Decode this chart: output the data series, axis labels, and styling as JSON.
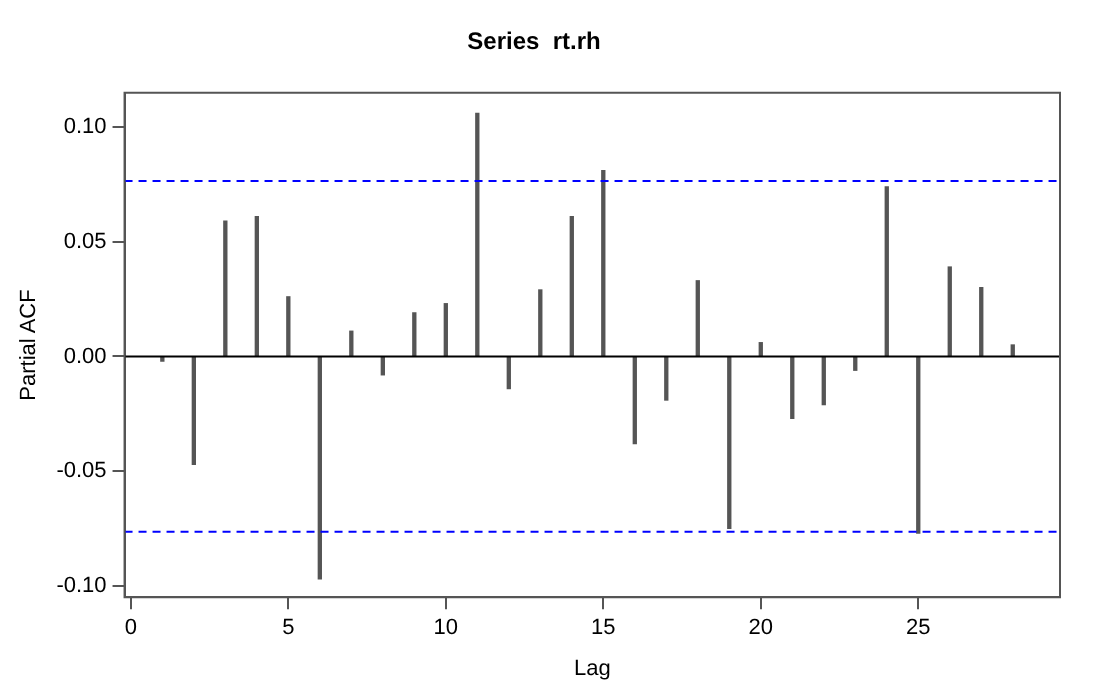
{
  "chart_data": {
    "type": "bar",
    "title": "Series  rt.rh",
    "xlabel": "Lag",
    "ylabel": "Partial ACF",
    "x": [
      1,
      2,
      3,
      4,
      5,
      6,
      7,
      8,
      9,
      10,
      11,
      12,
      13,
      14,
      15,
      16,
      17,
      18,
      19,
      20,
      21,
      22,
      23,
      24,
      25,
      26,
      27,
      28
    ],
    "series": [
      {
        "color": "#555555",
        "values": [
          -0.002,
          -0.047,
          0.059,
          0.061,
          0.026,
          -0.097,
          0.011,
          -0.008,
          0.019,
          0.023,
          0.106,
          -0.014,
          0.029,
          0.061,
          0.081,
          -0.038,
          -0.019,
          0.033,
          -0.075,
          0.006,
          -0.027,
          -0.021,
          -0.006,
          0.074,
          -0.077,
          0.039,
          0.03,
          0.005
        ]
      }
    ],
    "xlim": [
      -0.2,
      29.5
    ],
    "ylim": [
      -0.105,
      0.115
    ],
    "xticks": [
      0,
      5,
      10,
      15,
      20,
      25
    ],
    "yticks": [
      {
        "value": -0.1,
        "label": "-0.10"
      },
      {
        "value": -0.05,
        "label": "-0.05"
      },
      {
        "value": 0,
        "label": "0.00"
      },
      0.05,
      {
        "value": 0.1,
        "label": "0.10"
      }
    ],
    "ref_lines": [
      {
        "axis": "y",
        "value": 0.0765,
        "color": "#0000ff",
        "line_style": "dashed"
      },
      {
        "axis": "y",
        "value": -0.0765,
        "color": "#0000ff",
        "line_style": "dashed"
      },
      {
        "axis": "y",
        "value": 0,
        "color": "#000000",
        "line_style": "solid"
      }
    ],
    "grid": false,
    "legend": false
  }
}
